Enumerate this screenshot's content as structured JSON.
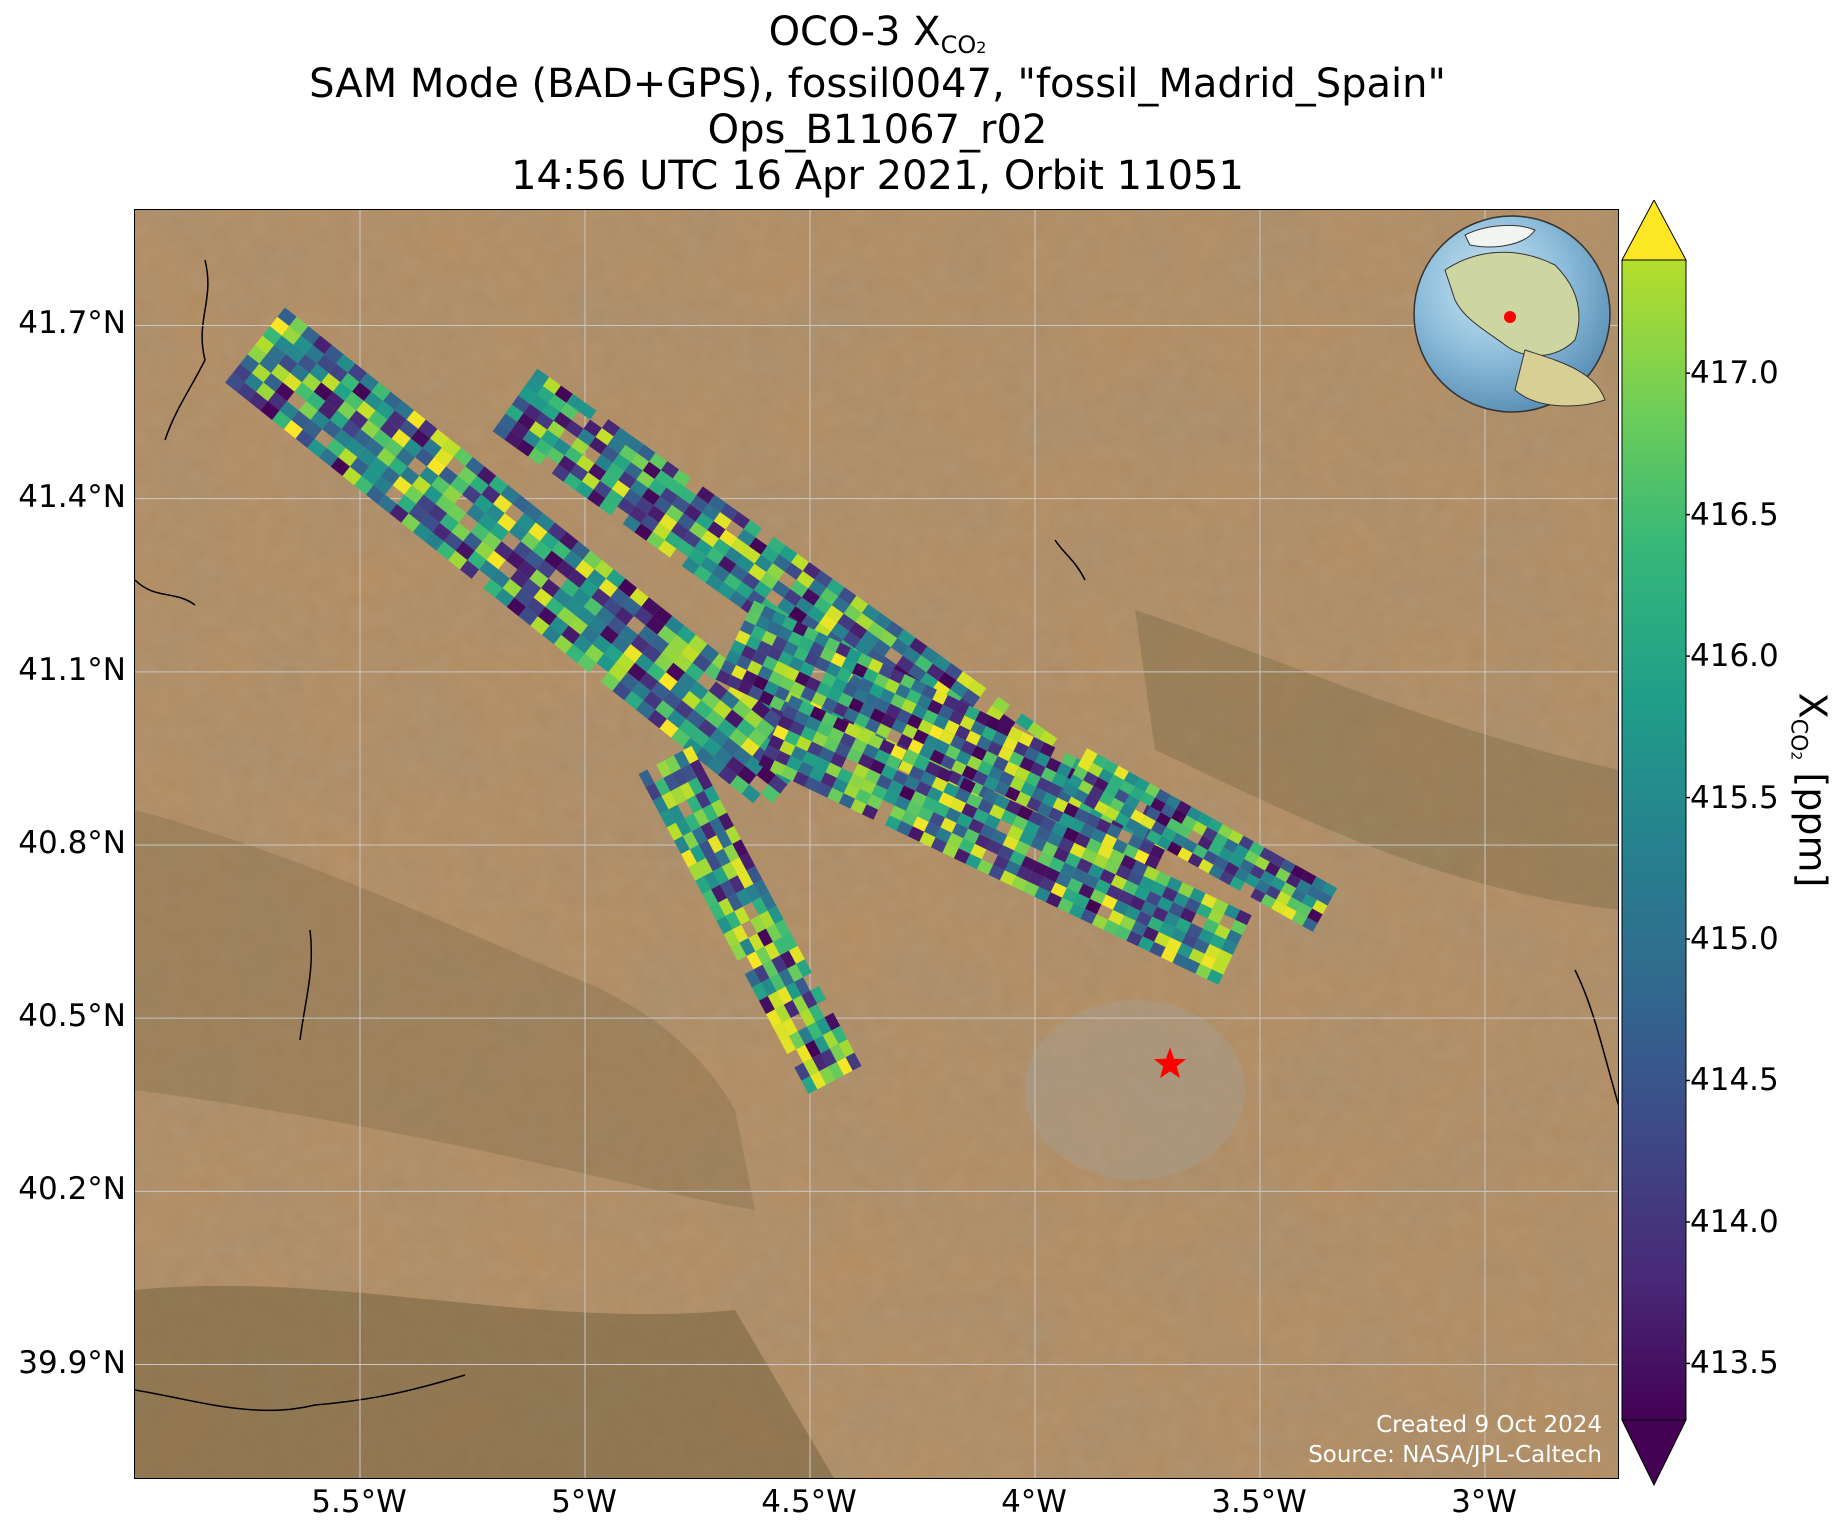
{
  "title": {
    "main": "OCO-3 X",
    "main_sub": "CO",
    "main_sub2": "2",
    "line2": "SAM Mode (BAD+GPS), fossil0047, \"fossil_Madrid_Spain\"",
    "line3": "Ops_B11067_r02",
    "line4": "14:56 UTC 16 Apr 2021, Orbit 11051"
  },
  "map": {
    "lat_ticks": [
      "41.7°N",
      "41.4°N",
      "41.1°N",
      "40.8°N",
      "40.5°N",
      "40.2°N",
      "39.9°N"
    ],
    "lat_values": [
      41.7,
      41.4,
      41.1,
      40.8,
      40.5,
      40.2,
      39.9
    ],
    "lon_ticks": [
      "5.5°W",
      "5°W",
      "4.5°W",
      "4°W",
      "3.5°W",
      "3°W"
    ],
    "lon_values": [
      -5.5,
      -5.0,
      -4.5,
      -4.0,
      -3.5,
      -3.0
    ],
    "extent": {
      "lon_min": -6.0,
      "lon_max": -2.7,
      "lat_min": 39.7,
      "lat_max": 41.9
    },
    "target_marker": {
      "lon": -3.7,
      "lat": 40.42,
      "color": "#ff0000",
      "icon": "star-icon"
    },
    "background": "satellite-imagery",
    "inset_globe": {
      "icon": "globe-icon",
      "marker_color": "#ff0000"
    }
  },
  "colorbar": {
    "label": "X",
    "label_sub": "CO",
    "label_sub2": "2",
    "label_unit": " [ppm]",
    "vmin": 413.3,
    "vmax": 417.4,
    "ticks": [
      "417.0",
      "416.5",
      "416.0",
      "415.5",
      "415.0",
      "414.5",
      "414.0",
      "413.5"
    ],
    "tick_values": [
      417.0,
      416.5,
      416.0,
      415.5,
      415.0,
      414.5,
      414.0,
      413.5
    ],
    "colormap": "viridis",
    "extend": "both"
  },
  "credits": {
    "created": "Created 9 Oct 2024",
    "source": "Source: NASA/JPL-Caltech"
  }
}
